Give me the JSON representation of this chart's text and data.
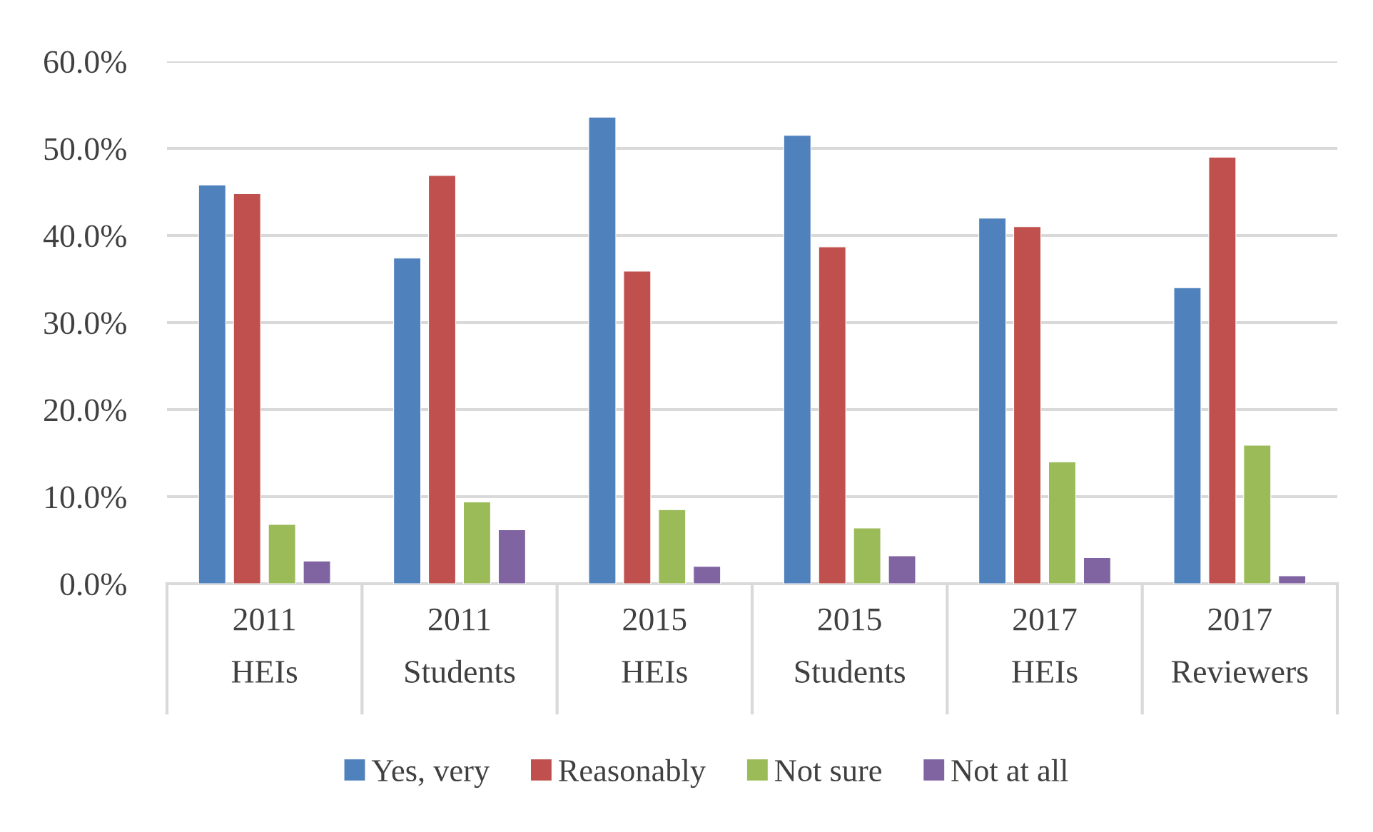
{
  "chart_data": {
    "type": "bar",
    "categories": [
      "2011\nHEIs",
      "2011\nStudents",
      "2015\nHEIs",
      "2015\nStudents",
      "2017\nHEIs",
      "2017\nReviewers"
    ],
    "series": [
      {
        "name": "Yes, very",
        "color": "#4f81bd",
        "values": [
          45.8,
          37.4,
          53.6,
          51.5,
          42.0,
          34.0
        ]
      },
      {
        "name": "Reasonably",
        "color": "#c0504d",
        "values": [
          44.8,
          46.9,
          35.9,
          38.7,
          41.0,
          49.0
        ]
      },
      {
        "name": "Not sure",
        "color": "#9bbb59",
        "values": [
          6.8,
          9.4,
          8.5,
          6.4,
          14.0,
          15.9
        ]
      },
      {
        "name": "Not at all",
        "color": "#8064a2",
        "values": [
          2.6,
          6.2,
          2.0,
          3.2,
          3.0,
          0.9
        ]
      }
    ],
    "ylim": [
      0,
      60
    ],
    "yticks": [
      {
        "value": 0,
        "label": "0.0%"
      },
      {
        "value": 10,
        "label": "10.0%"
      },
      {
        "value": 20,
        "label": "20.0%"
      },
      {
        "value": 30,
        "label": "30.0%"
      },
      {
        "value": 40,
        "label": "40.0%"
      },
      {
        "value": 50,
        "label": "50.0%"
      },
      {
        "value": 60,
        "label": "60.0%"
      }
    ],
    "grid": "y",
    "legend": "bottom"
  }
}
